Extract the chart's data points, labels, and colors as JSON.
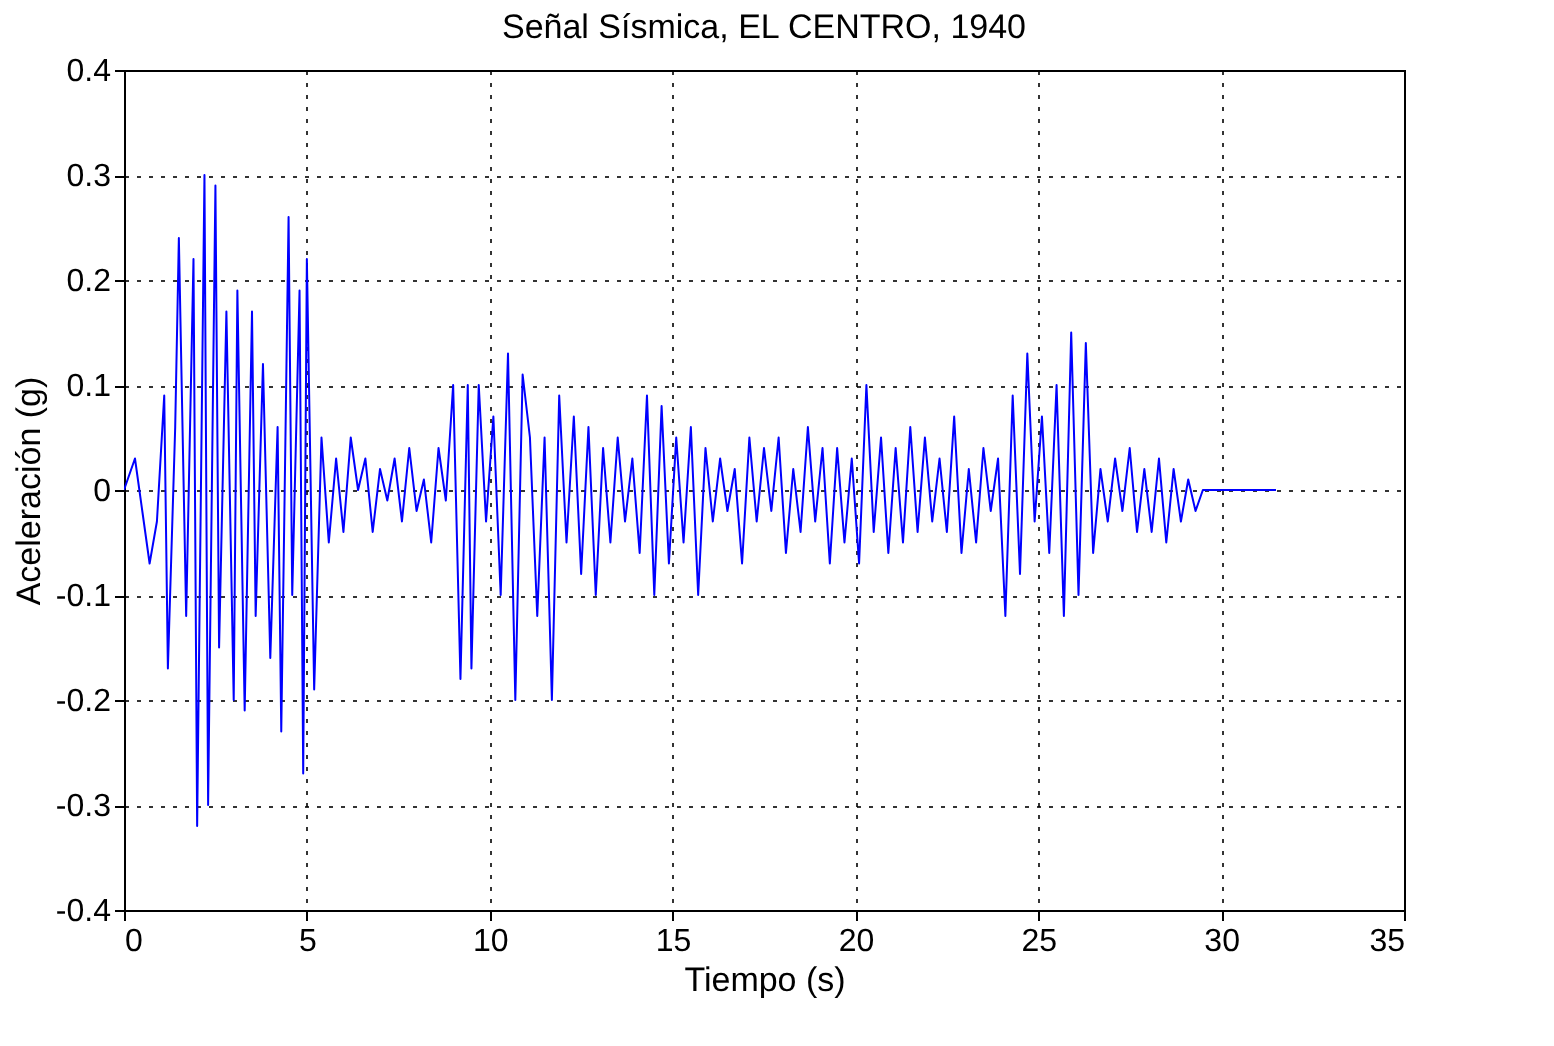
{
  "chart_data": {
    "type": "line",
    "title": "Señal Sísmica, EL CENTRO, 1940",
    "xlabel": "Tiempo (s)",
    "ylabel": "Aceleración (g)",
    "x": [
      0,
      0.3,
      0.5,
      0.7,
      0.9,
      1.1,
      1.2,
      1.4,
      1.5,
      1.7,
      1.9,
      2.0,
      2.2,
      2.3,
      2.5,
      2.6,
      2.8,
      3.0,
      3.1,
      3.3,
      3.5,
      3.6,
      3.8,
      4.0,
      4.2,
      4.3,
      4.5,
      4.6,
      4.8,
      4.9,
      5.0,
      5.2,
      5.4,
      5.6,
      5.8,
      6.0,
      6.2,
      6.4,
      6.6,
      6.8,
      7.0,
      7.2,
      7.4,
      7.6,
      7.8,
      8.0,
      8.2,
      8.4,
      8.6,
      8.8,
      9.0,
      9.2,
      9.4,
      9.5,
      9.7,
      9.9,
      10.1,
      10.3,
      10.5,
      10.7,
      10.9,
      11.1,
      11.3,
      11.5,
      11.7,
      11.9,
      12.1,
      12.3,
      12.5,
      12.7,
      12.9,
      13.1,
      13.3,
      13.5,
      13.7,
      13.9,
      14.1,
      14.3,
      14.5,
      14.7,
      14.9,
      15.1,
      15.3,
      15.5,
      15.7,
      15.9,
      16.1,
      16.3,
      16.5,
      16.7,
      16.9,
      17.1,
      17.3,
      17.5,
      17.7,
      17.9,
      18.1,
      18.3,
      18.5,
      18.7,
      18.9,
      19.1,
      19.3,
      19.5,
      19.7,
      19.9,
      20.1,
      20.3,
      20.5,
      20.7,
      20.9,
      21.1,
      21.3,
      21.5,
      21.7,
      21.9,
      22.1,
      22.3,
      22.5,
      22.7,
      22.9,
      23.1,
      23.3,
      23.5,
      23.7,
      23.9,
      24.1,
      24.3,
      24.5,
      24.7,
      24.9,
      25.1,
      25.3,
      25.5,
      25.7,
      25.9,
      26.1,
      26.3,
      26.5,
      26.7,
      26.9,
      27.1,
      27.3,
      27.5,
      27.7,
      27.9,
      28.1,
      28.3,
      28.5,
      28.7,
      28.9,
      29.1,
      29.3,
      29.5,
      31.5
    ],
    "series": [
      {
        "color": "#0000ff",
        "values": [
          0.0,
          0.03,
          -0.02,
          -0.07,
          -0.03,
          0.09,
          -0.17,
          0.06,
          0.24,
          -0.12,
          0.22,
          -0.32,
          0.3,
          -0.3,
          0.29,
          -0.15,
          0.17,
          -0.2,
          0.19,
          -0.21,
          0.17,
          -0.12,
          0.12,
          -0.16,
          0.06,
          -0.23,
          0.26,
          -0.1,
          0.19,
          -0.27,
          0.22,
          -0.19,
          0.05,
          -0.05,
          0.03,
          -0.04,
          0.05,
          0.0,
          0.03,
          -0.04,
          0.02,
          -0.01,
          0.03,
          -0.03,
          0.04,
          -0.02,
          0.01,
          -0.05,
          0.04,
          -0.01,
          0.1,
          -0.18,
          0.1,
          -0.17,
          0.1,
          -0.03,
          0.07,
          -0.1,
          0.13,
          -0.2,
          0.11,
          0.05,
          -0.12,
          0.05,
          -0.2,
          0.09,
          -0.05,
          0.07,
          -0.08,
          0.06,
          -0.1,
          0.04,
          -0.05,
          0.05,
          -0.03,
          0.03,
          -0.06,
          0.09,
          -0.1,
          0.08,
          -0.07,
          0.05,
          -0.05,
          0.06,
          -0.1,
          0.04,
          -0.03,
          0.03,
          -0.02,
          0.02,
          -0.07,
          0.05,
          -0.03,
          0.04,
          -0.02,
          0.05,
          -0.06,
          0.02,
          -0.04,
          0.06,
          -0.03,
          0.04,
          -0.07,
          0.04,
          -0.05,
          0.03,
          -0.07,
          0.1,
          -0.04,
          0.05,
          -0.06,
          0.04,
          -0.05,
          0.06,
          -0.04,
          0.05,
          -0.03,
          0.03,
          -0.04,
          0.07,
          -0.06,
          0.02,
          -0.05,
          0.04,
          -0.02,
          0.03,
          -0.12,
          0.09,
          -0.08,
          0.13,
          -0.03,
          0.07,
          -0.06,
          0.1,
          -0.12,
          0.15,
          -0.1,
          0.14,
          -0.06,
          0.02,
          -0.03,
          0.03,
          -0.02,
          0.04,
          -0.04,
          0.02,
          -0.04,
          0.03,
          -0.05,
          0.02,
          -0.03,
          0.01,
          -0.02,
          0.0,
          0.0
        ]
      }
    ],
    "xlim": [
      0,
      35
    ],
    "ylim": [
      -0.4,
      0.4
    ],
    "xticks": [
      0,
      5,
      10,
      15,
      20,
      25,
      30,
      35
    ],
    "yticks": [
      -0.4,
      -0.3,
      -0.2,
      -0.1,
      0,
      0.1,
      0.2,
      0.3,
      0.4
    ],
    "grid": true
  }
}
